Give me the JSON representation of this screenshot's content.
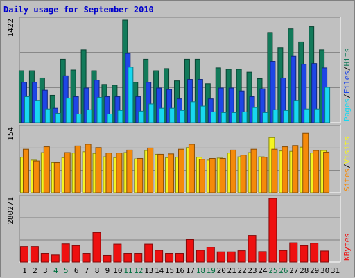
{
  "chart_data": {
    "title": "Daily usage for September 2010",
    "categories": [
      "1",
      "2",
      "3",
      "4",
      "5",
      "6",
      "7",
      "8",
      "9",
      "10",
      "11",
      "12",
      "13",
      "14",
      "15",
      "16",
      "17",
      "18",
      "19",
      "20",
      "21",
      "22",
      "23",
      "24",
      "25",
      "26",
      "27",
      "28",
      "29",
      "30",
      "31"
    ],
    "weekend_days": [
      "4",
      "5",
      "11",
      "12",
      "18",
      "19",
      "25",
      "26"
    ],
    "colors": {
      "hits": "#127a5a",
      "files": "#1e46e6",
      "pages": "#18d8f0",
      "visits": "#f5f520",
      "sites": "#f58a0a",
      "kbytes": "#ee1010",
      "weekday_label": "#000000",
      "weekend_label": "#007040",
      "title": "#0000cc"
    },
    "panels": [
      {
        "type": "bar",
        "ymax": 1422,
        "ymax_label": "1422",
        "legend": [
          {
            "text": "Pages",
            "color": "#18d8f0"
          },
          {
            "text": "/",
            "color": "#000000"
          },
          {
            "text": "Files",
            "color": "#1e46e6"
          },
          {
            "text": "/",
            "color": "#000000"
          },
          {
            "text": "Hits",
            "color": "#127a5a"
          }
        ],
        "series": [
          {
            "name": "Hits",
            "color": "#127a5a",
            "values": [
              720,
              720,
              620,
              380,
              880,
              730,
              1010,
              720,
              530,
              520,
              1422,
              560,
              880,
              720,
              750,
              580,
              880,
              880,
              540,
              760,
              740,
              740,
              700,
              610,
              1250,
              1040,
              1300,
              1120,
              1330,
              1010
            ]
          },
          {
            "name": "Files",
            "color": "#1e46e6",
            "values": [
              560,
              560,
              450,
              200,
              650,
              360,
              480,
              590,
              360,
              360,
              960,
              360,
              560,
              480,
              460,
              330,
              600,
              600,
              330,
              480,
              480,
              440,
              360,
              470,
              850,
              620,
              920,
              810,
              820,
              760
            ]
          },
          {
            "name": "Pages",
            "color": "#18d8f0",
            "values": [
              360,
              310,
              190,
              130,
              340,
              120,
              180,
              350,
              120,
              170,
              770,
              160,
              260,
              200,
              200,
              170,
              290,
              230,
              150,
              140,
              140,
              150,
              210,
              140,
              180,
              170,
              310,
              190,
              190,
              490
            ]
          }
        ]
      },
      {
        "type": "bar",
        "ymax": 154,
        "ymax_label": "154",
        "legend": [
          {
            "text": "Sites",
            "color": "#f58a0a"
          },
          {
            "text": "/",
            "color": "#000000"
          },
          {
            "text": "Visits",
            "color": "#f5f520"
          }
        ],
        "series": [
          {
            "name": "Visits",
            "color": "#f5f520",
            "values": [
              85,
              78,
              96,
              72,
              84,
              95,
              98,
              94,
              86,
              84,
              96,
              81,
              101,
              92,
              84,
              85,
              108,
              85,
              78,
              83,
              95,
              86,
              96,
              86,
              132,
              100,
              99,
              109,
              95,
              101
            ]
          },
          {
            "name": "Sites",
            "color": "#f58a0a",
            "values": [
              104,
              76,
              110,
              72,
              96,
              112,
              116,
              108,
              95,
              95,
              102,
              82,
              107,
              92,
              93,
              104,
              116,
              80,
              82,
              82,
              102,
              90,
              104,
              85,
              104,
              110,
              113,
              142,
              101,
              97
            ]
          }
        ]
      },
      {
        "type": "bar",
        "ymax": 280271,
        "ymax_label": "280271",
        "legend": [
          {
            "text": "KBytes",
            "color": "#ee1010"
          }
        ],
        "series": [
          {
            "name": "KBytes",
            "color": "#ee1010",
            "values": [
              68000,
              68000,
              38000,
              31000,
              80000,
              72000,
              38000,
              130000,
              29000,
              79000,
              38000,
              38000,
              79000,
              52000,
              38000,
              38000,
              99000,
              52000,
              65000,
              45000,
              45000,
              50000,
              117000,
              46000,
              280271,
              51000,
              85000,
              72000,
              83000,
              49000
            ]
          }
        ]
      }
    ]
  }
}
